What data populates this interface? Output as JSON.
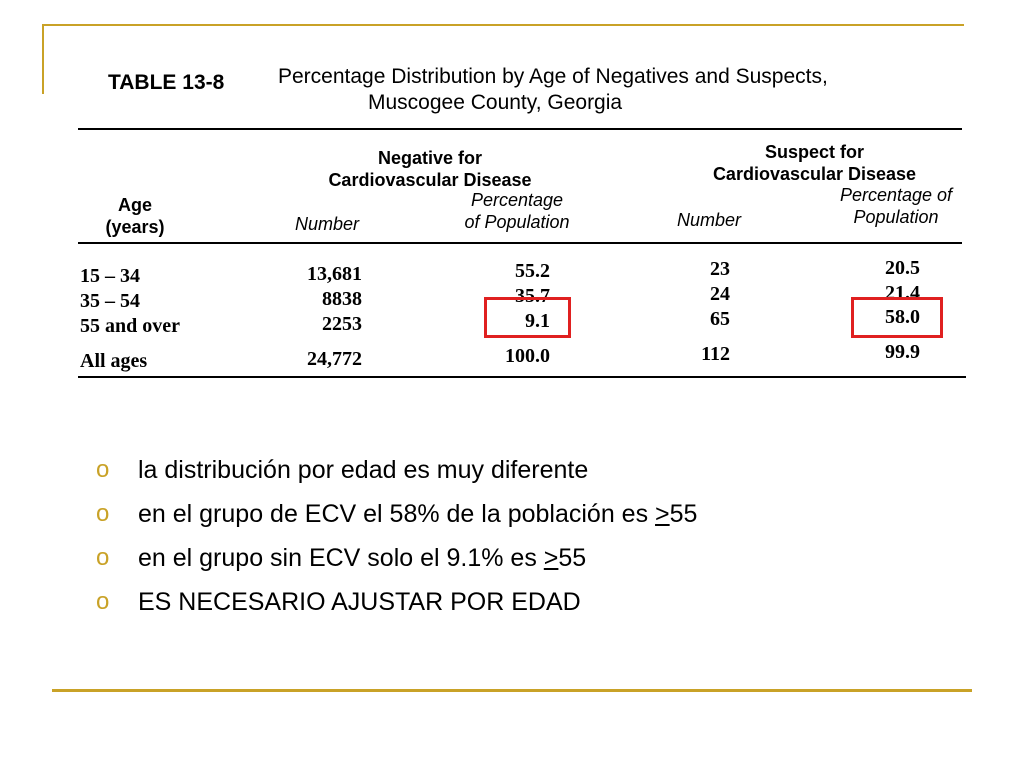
{
  "table": {
    "label": "TABLE 13-8",
    "title_line1": "Percentage Distribution by Age of Negatives and Suspects,",
    "title_line2": "Muscogee County, Georgia",
    "group_negative": [
      "Negative for",
      "Cardiovascular Disease"
    ],
    "group_suspect": [
      "Suspect for",
      "Cardiovascular Disease"
    ],
    "age_header": [
      "Age",
      "(years)"
    ],
    "col_number": "Number",
    "col_pct_negative": [
      "Percentage",
      "of Population"
    ],
    "col_pct_suspect": [
      "Percentage of",
      "Population"
    ],
    "rows": [
      {
        "age": "15 – 34",
        "neg_number": "13,681",
        "neg_pct": "55.2",
        "sus_number": "23",
        "sus_pct": "20.5"
      },
      {
        "age": "35 – 54",
        "neg_number": "8838",
        "neg_pct": "35.7",
        "sus_number": "24",
        "sus_pct": "21.4"
      },
      {
        "age": "55 and over",
        "neg_number": "2253",
        "neg_pct": "9.1",
        "sus_number": "65",
        "sus_pct": "58.0"
      }
    ],
    "total": {
      "age": "All ages",
      "neg_number": "24,772",
      "neg_pct": "100.0",
      "sus_number": "112",
      "sus_pct": "99.9"
    },
    "highlight_color": "#e02020"
  },
  "bullets": {
    "marker": "o",
    "items": [
      {
        "text": "la distribución por edad es muy diferente"
      },
      {
        "text": "en el grupo de ECV el 58% de la población es ",
        "ge": ">",
        "tail": "55"
      },
      {
        "text": "en el grupo sin ECV solo el 9.1% es ",
        "ge": ">",
        "tail": "55"
      },
      {
        "text": "ES NECESARIO AJUSTAR POR EDAD"
      }
    ]
  },
  "accent_color": "#c9a227"
}
